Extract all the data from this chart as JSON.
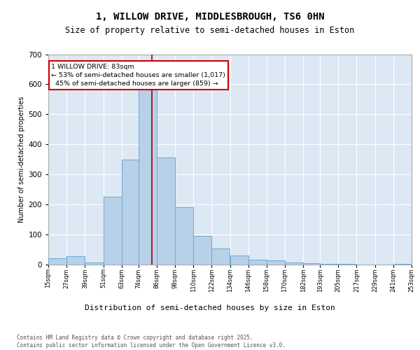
{
  "title1": "1, WILLOW DRIVE, MIDDLESBROUGH, TS6 0HN",
  "title2": "Size of property relative to semi-detached houses in Eston",
  "xlabel": "Distribution of semi-detached houses by size in Eston",
  "ylabel": "Number of semi-detached properties",
  "bin_edges": [
    15,
    27,
    39,
    51,
    63,
    74,
    86,
    98,
    110,
    122,
    134,
    146,
    158,
    170,
    182,
    193,
    205,
    217,
    229,
    241,
    253
  ],
  "bin_labels": [
    "15sqm",
    "27sqm",
    "39sqm",
    "51sqm",
    "63sqm",
    "74sqm",
    "86sqm",
    "98sqm",
    "110sqm",
    "122sqm",
    "134sqm",
    "146sqm",
    "158sqm",
    "170sqm",
    "182sqm",
    "193sqm",
    "205sqm",
    "217sqm",
    "229sqm",
    "241sqm",
    "253sqm"
  ],
  "counts": [
    20,
    28,
    5,
    225,
    350,
    615,
    355,
    190,
    95,
    52,
    30,
    15,
    12,
    5,
    4,
    2,
    1,
    0,
    0,
    1,
    0
  ],
  "bar_color": "#b8d0e8",
  "bar_edge_color": "#6aaad4",
  "vline_x": 83,
  "vline_color": "#990000",
  "annotation_text": "1 WILLOW DRIVE: 83sqm\n← 53% of semi-detached houses are smaller (1,017)\n  45% of semi-detached houses are larger (859) →",
  "ann_box_fc": "#ffffff",
  "ann_box_ec": "#cc0000",
  "footer": "Contains HM Land Registry data © Crown copyright and database right 2025.\nContains public sector information licensed under the Open Government Licence v3.0.",
  "ylim_max": 700,
  "yticks": [
    0,
    100,
    200,
    300,
    400,
    500,
    600,
    700
  ],
  "bg_color": "#dde8f5",
  "fig_bg": "#ffffff",
  "grid_color": "#ffffff",
  "title1_fontsize": 10,
  "title2_fontsize": 8.5,
  "ylabel_fontsize": 7,
  "xlabel_fontsize": 8,
  "tick_fontsize": 6,
  "ytick_fontsize": 7.5,
  "footer_fontsize": 5.5,
  "ann_fontsize": 6.8
}
